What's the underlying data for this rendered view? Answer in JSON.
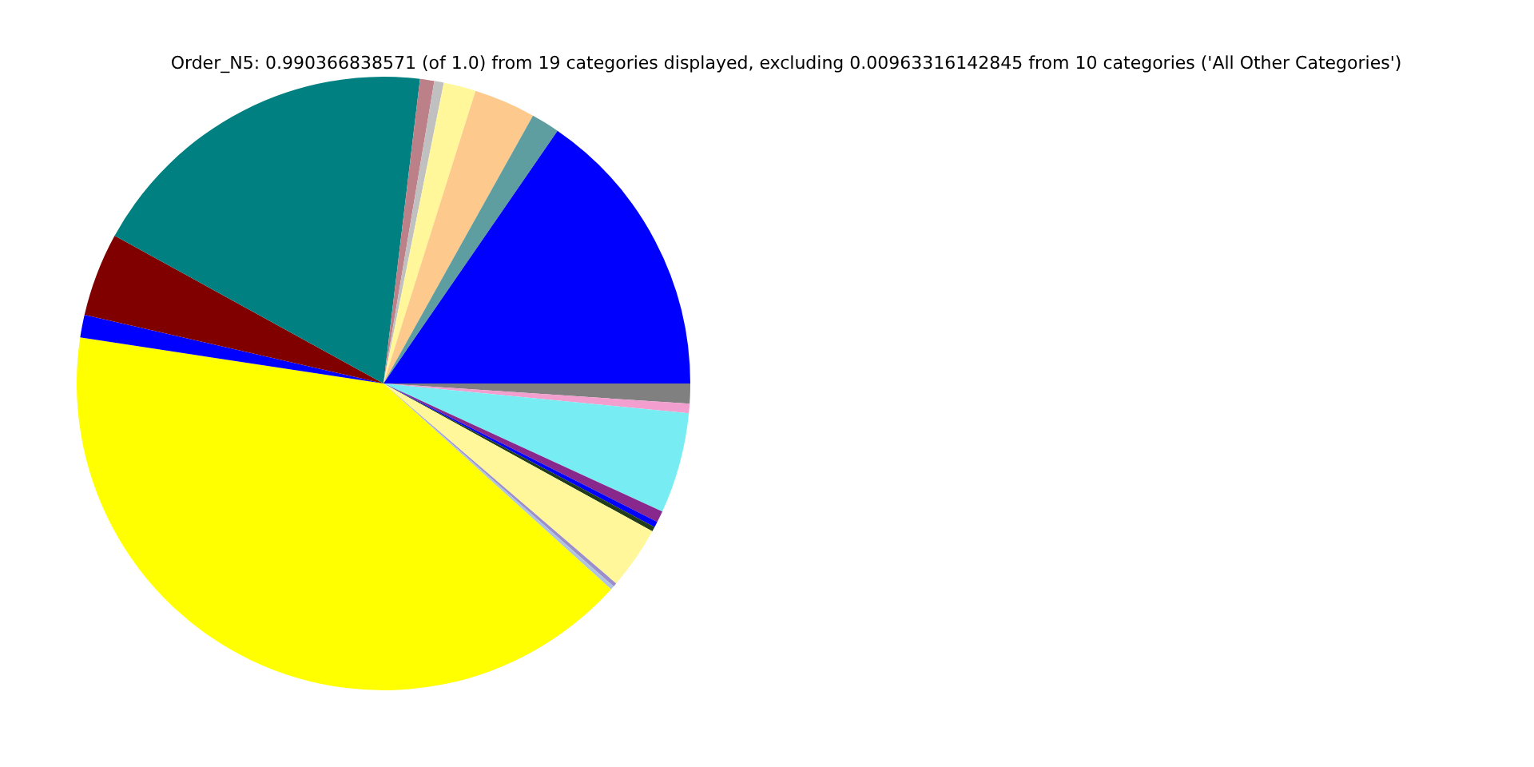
{
  "chart_data": {
    "type": "pie",
    "title": "Order_N5: 0.990366838571 (of 1.0) from 19 categories displayed, excluding 0.00963316142845 from 10 categories ('All Other Categories')",
    "categories": [
      null,
      null,
      null,
      null,
      null,
      null,
      null,
      null,
      null,
      null,
      null,
      null,
      null,
      null,
      null,
      null,
      null,
      null,
      null
    ],
    "values": [
      15.4,
      1.5,
      3.25,
      1.7,
      0.5,
      0.75,
      18.9,
      4.4,
      1.2,
      40.7,
      0.2,
      0.2,
      3.3,
      0.25,
      0.3,
      0.6,
      5.3,
      0.5,
      1.05
    ],
    "colors": [
      "#0000ff",
      "#5f9ea0",
      "#fec98c",
      "#fff799",
      "#c0c0c0",
      "#bc8088",
      "#008080",
      "#800000",
      "#0000ff",
      "#ffff00",
      "#b0c4de",
      "#9b8fcb",
      "#fff799",
      "#223d1c",
      "#0000ff",
      "#88288c",
      "#77edf3",
      "#f29fd0",
      "#808080"
    ]
  }
}
